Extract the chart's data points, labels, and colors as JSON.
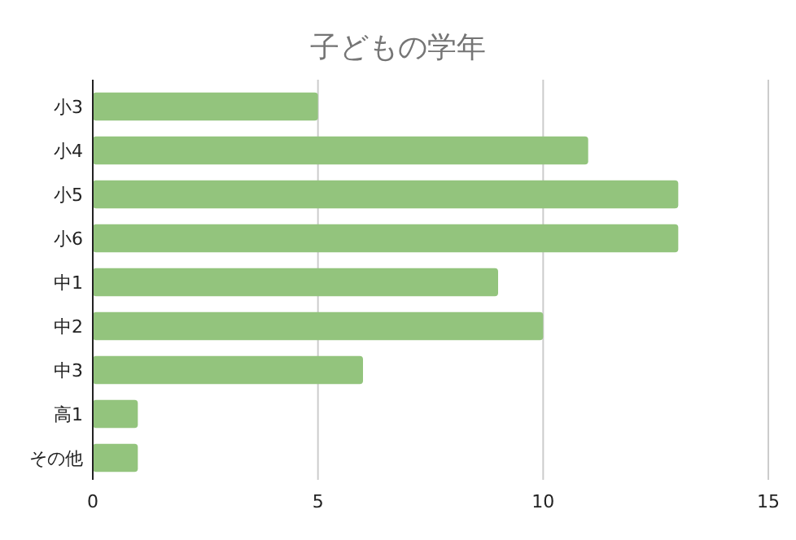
{
  "chart_data": {
    "type": "bar",
    "orientation": "horizontal",
    "title": "子どもの学年",
    "categories": [
      "小3",
      "小4",
      "小5",
      "小6",
      "中1",
      "中2",
      "中3",
      "高1",
      "その他"
    ],
    "values": [
      5,
      11,
      13,
      13,
      9,
      10,
      6,
      1,
      1
    ],
    "color": "#93c47d",
    "xlim": [
      0,
      15
    ],
    "xticks": [
      0,
      5,
      10,
      15
    ],
    "grid": "x"
  }
}
